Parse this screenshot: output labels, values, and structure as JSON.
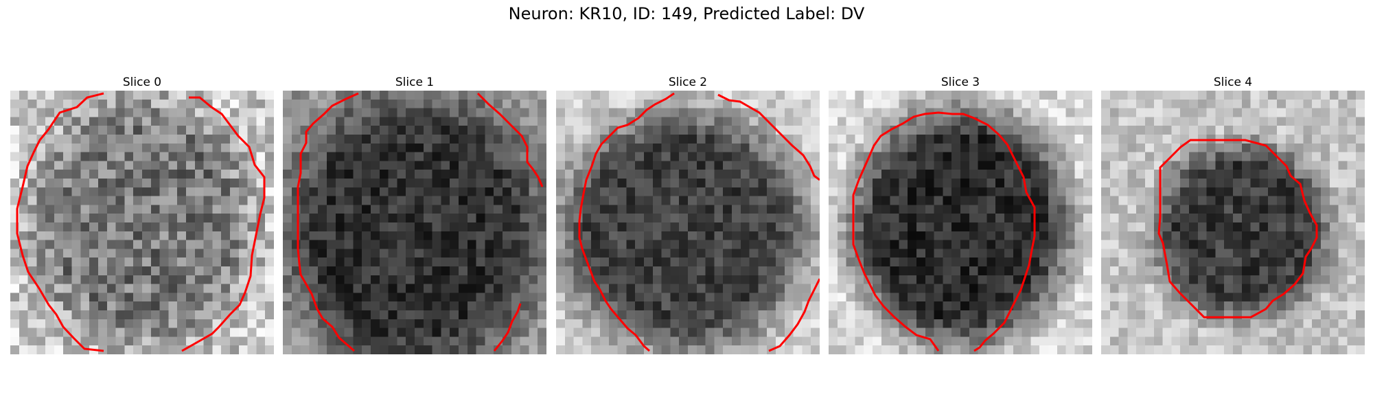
{
  "figure": {
    "title": "Neuron: KR10, ID: 149, Predicted Label: DV"
  },
  "panels": [
    {
      "title": "Slice 0",
      "cell_darkness": 0.35,
      "cell_mean": 120,
      "bg_mean": 200
    },
    {
      "title": "Slice 1",
      "cell_darkness": 0.8,
      "cell_mean": 50,
      "bg_mean": 150
    },
    {
      "title": "Slice 2",
      "cell_darkness": 0.7,
      "cell_mean": 65,
      "bg_mean": 205
    },
    {
      "title": "Slice 3",
      "cell_darkness": 0.8,
      "cell_mean": 45,
      "bg_mean": 215
    },
    {
      "title": "Slice 4",
      "cell_darkness": 0.7,
      "cell_mean": 60,
      "bg_mean": 195
    }
  ],
  "colors": {
    "contour": "#ff0000"
  }
}
